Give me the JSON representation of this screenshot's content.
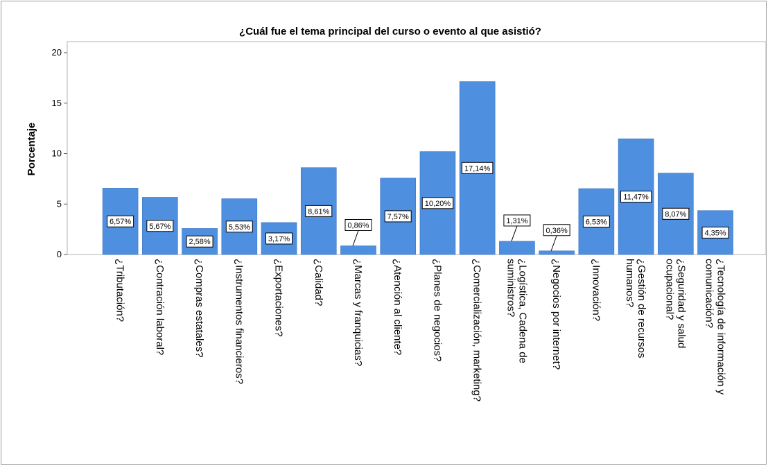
{
  "chart_data": {
    "type": "bar",
    "title": "¿Cuál fue el tema principal del curso o evento al que asistió?",
    "y_label": "Porcentaje",
    "categories": [
      "¿Tributación?",
      "¿Contración laboral?",
      "¿Compras estatales?",
      "¿Instrumentos financieros?",
      "¿Exportaciones?",
      "¿Calidad?",
      "¿Marcas y franquicias?",
      "¿Atención al cliente?",
      "¿Planes de negocios?",
      "¿Comercialización, marketing?",
      "¿Logística, Cadena de\nsuministros?",
      "¿Negocios por internet?",
      "¿Innovación?",
      "¿Gestión de recursos\nhumanos?",
      "¿Seguridad y salud\nocupacional?",
      "¿Tecnología de información y\ncomunicación?"
    ],
    "values": [
      6.57,
      5.67,
      2.58,
      5.53,
      3.17,
      8.61,
      0.86,
      7.57,
      10.2,
      17.14,
      1.31,
      0.36,
      6.53,
      11.47,
      8.07,
      4.35
    ],
    "value_labels": [
      "6,57%",
      "5,67%",
      "2,58%",
      "5,53%",
      "3,17%",
      "8,61%",
      "0,86%",
      "7,57%",
      "10,20%",
      "17,14%",
      "1,31%",
      "0,36%",
      "6,53%",
      "11,47%",
      "8,07%",
      "4,35%"
    ],
    "color": "#4f8fe0",
    "ylim": [
      0,
      21.1
    ],
    "yticks": [
      0,
      5,
      10,
      15,
      20
    ]
  }
}
